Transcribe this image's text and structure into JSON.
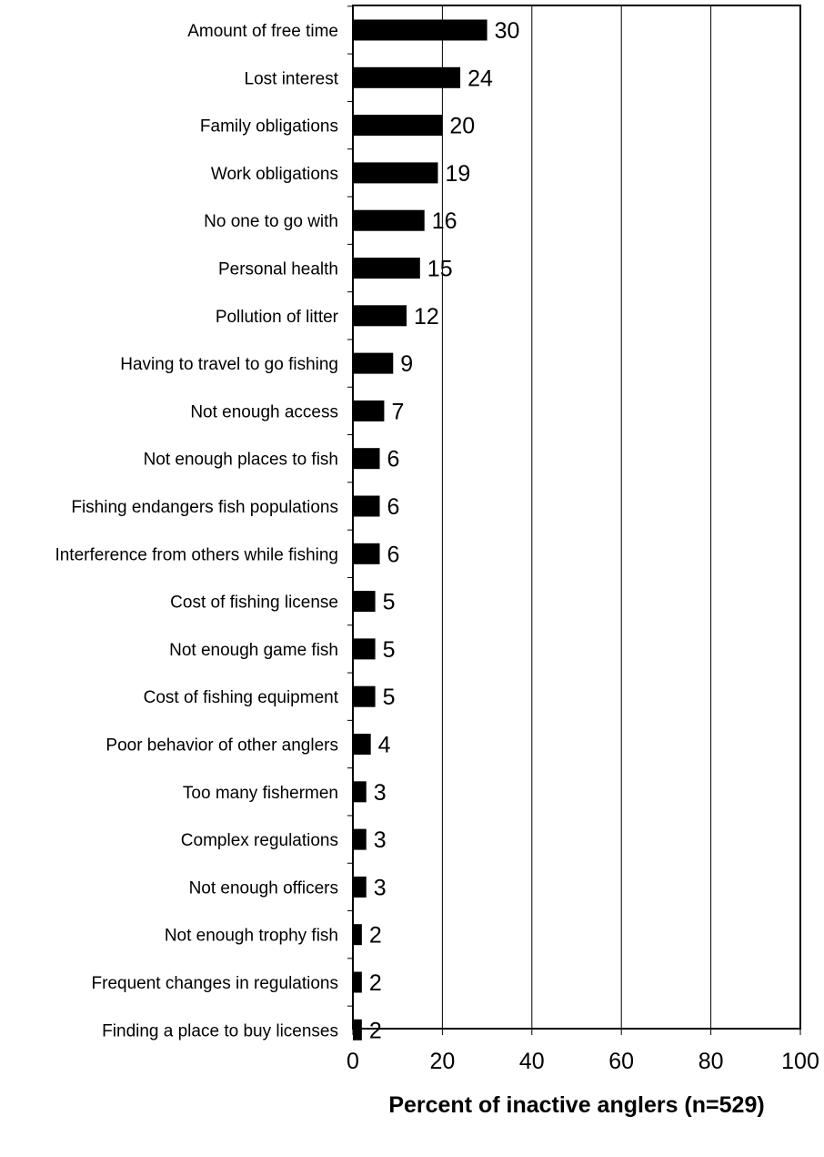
{
  "chart_data": {
    "type": "bar",
    "orientation": "horizontal",
    "categories": [
      "Amount of free time",
      "Lost interest",
      "Family obligations",
      "Work obligations",
      "No one to go with",
      "Personal health",
      "Pollution of litter",
      "Having to travel to go fishing",
      "Not enough access",
      "Not enough places to fish",
      "Fishing endangers fish populations",
      "Interference from others while fishing",
      "Cost of fishing license",
      "Not enough game fish",
      "Cost of fishing equipment",
      "Poor behavior of other anglers",
      "Too many fishermen",
      "Complex regulations",
      "Not enough officers",
      "Not enough trophy fish",
      "Frequent changes in regulations",
      "Finding a place to buy licenses"
    ],
    "values": [
      30,
      24,
      20,
      19,
      16,
      15,
      12,
      9,
      7,
      6,
      6,
      6,
      5,
      5,
      5,
      4,
      3,
      3,
      3,
      2,
      2,
      2
    ],
    "data_labels": [
      "30",
      "24",
      "20",
      "19",
      "16",
      "15",
      "12",
      "9",
      "7",
      "6",
      "6",
      "6",
      "5",
      "5",
      "5",
      "4",
      "3",
      "3",
      "3",
      "2",
      "2",
      "2"
    ],
    "title": "",
    "xlabel": "Percent of inactive anglers (n=529)",
    "ylabel": "",
    "xlim": [
      0,
      100
    ],
    "xticks": [
      0,
      20,
      40,
      60,
      80,
      100
    ],
    "xtick_labels": [
      "0",
      "20",
      "40",
      "60",
      "80",
      "100"
    ],
    "grid": "vertical",
    "legend": "none",
    "bar_color": "#000000",
    "grid_color": "#000000"
  }
}
